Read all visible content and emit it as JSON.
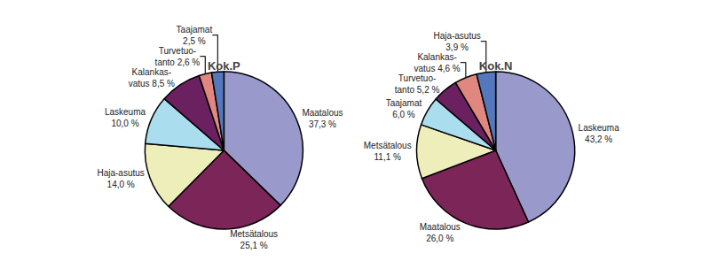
{
  "chart_data": [
    {
      "type": "pie",
      "title": "Kok.P",
      "values": [
        37.3,
        25.1,
        14.0,
        10.0,
        8.5,
        2.6,
        2.5
      ],
      "value_labels": [
        "Maatalous\n37,3 %",
        "Metsätalous\n25,1 %",
        "Haja-asutus\n14,0 %",
        "Laskeuma\n10,0 %",
        "Kalankas-\nvatus 8,5 %",
        "Turvetuo-\ntanto 2,6 %",
        "Taajamat\n2,5 %"
      ],
      "colors": [
        "#9999cc",
        "#7b2558",
        "#eeeebb",
        "#aaddee",
        "#6b2060",
        "#e08880",
        "#5577bb"
      ]
    },
    {
      "type": "pie",
      "title": "Kok.N",
      "values": [
        43.2,
        26.0,
        11.1,
        6.0,
        5.2,
        4.6,
        3.9
      ],
      "value_labels": [
        "Laskeuma\n43,2 %",
        "Maatalous\n26,0 %",
        "Metsätalous\n11,1 %",
        "Taajamat\n6,0 %",
        "Turvetuo-\ntanto 5,2 %",
        "Kalankas-\nvatus 4,6 %",
        "Haja-asutus\n3,9 %"
      ],
      "colors": [
        "#9999cc",
        "#7b2558",
        "#eeeebb",
        "#aaddee",
        "#6b2060",
        "#e08880",
        "#5577bb"
      ]
    }
  ]
}
